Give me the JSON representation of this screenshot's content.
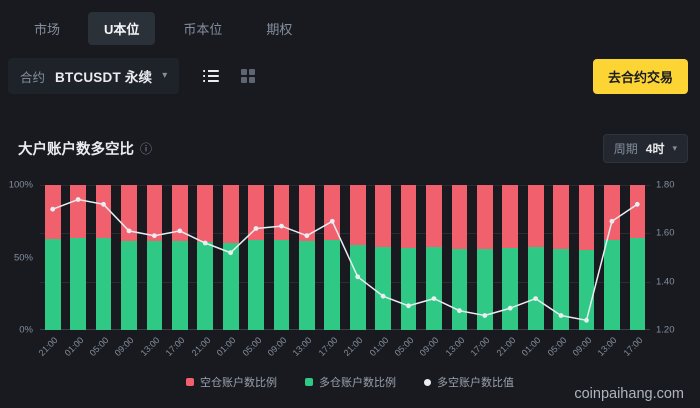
{
  "colors": {
    "background": "#181a20",
    "panel": "#1e2329",
    "chip": "#2b3139",
    "accent_yellow": "#fcd535",
    "short_red": "#f0616d",
    "long_green": "#2fc985",
    "line_white": "#e9edf2",
    "text_secondary": "#848e9c"
  },
  "tabs": [
    {
      "label": "市场",
      "active": false
    },
    {
      "label": "U本位",
      "active": true
    },
    {
      "label": "币本位",
      "active": false
    },
    {
      "label": "期权",
      "active": false
    }
  ],
  "controls": {
    "contract_label": "合约",
    "symbol_value": "BTCUSDT 永续",
    "trade_button_label": "去合约交易"
  },
  "section": {
    "title": "大户账户数多空比",
    "period_label": "周期",
    "period_value": "4时"
  },
  "icons": {
    "chevron_down": "▾",
    "info": "ⓘ"
  },
  "chart_data": {
    "type": "bar",
    "subtype": "stacked-100-percent-with-line",
    "x": [
      "21:00",
      "01:00",
      "05:00",
      "09:00",
      "13:00",
      "17:00",
      "21:00",
      "01:00",
      "05:00",
      "09:00",
      "13:00",
      "17:00",
      "21:00",
      "01:00",
      "05:00",
      "09:00",
      "13:00",
      "17:00",
      "21:00",
      "01:00",
      "05:00",
      "09:00",
      "13:00",
      "17:00"
    ],
    "series": [
      {
        "name": "空仓账户数比例",
        "type": "bar",
        "stack": "pct",
        "color": "#f0616d",
        "values": [
          37.0,
          36.5,
          36.8,
          38.3,
          38.6,
          38.3,
          39.1,
          39.7,
          38.2,
          38.0,
          38.6,
          37.7,
          41.3,
          42.7,
          43.5,
          42.9,
          43.9,
          44.2,
          43.7,
          42.9,
          44.2,
          44.6,
          37.7,
          36.8
        ]
      },
      {
        "name": "多仓账户数比例",
        "type": "bar",
        "stack": "pct",
        "color": "#2fc985",
        "values": [
          63.0,
          63.5,
          63.2,
          61.7,
          61.4,
          61.7,
          60.9,
          60.3,
          61.8,
          62.0,
          61.4,
          62.3,
          58.7,
          57.3,
          56.5,
          57.1,
          56.1,
          55.8,
          56.3,
          57.1,
          55.8,
          55.4,
          62.3,
          63.2
        ]
      },
      {
        "name": "多空账户数比值",
        "type": "line",
        "color": "#e9edf2",
        "values": [
          1.7,
          1.74,
          1.72,
          1.61,
          1.59,
          1.61,
          1.56,
          1.52,
          1.62,
          1.63,
          1.59,
          1.65,
          1.42,
          1.34,
          1.3,
          1.33,
          1.28,
          1.26,
          1.29,
          1.33,
          1.26,
          1.24,
          1.65,
          1.72
        ]
      }
    ],
    "left_axis": {
      "ticks": [
        "100%",
        "50%",
        "0%"
      ],
      "range": [
        0,
        100
      ],
      "unit": "%"
    },
    "right_axis": {
      "ticks": [
        "1.80",
        "1.60",
        "1.40",
        "1.20"
      ],
      "range": [
        1.2,
        1.8
      ]
    },
    "legend_position": "bottom",
    "grid": true
  },
  "watermark": "coinpaihang.com"
}
